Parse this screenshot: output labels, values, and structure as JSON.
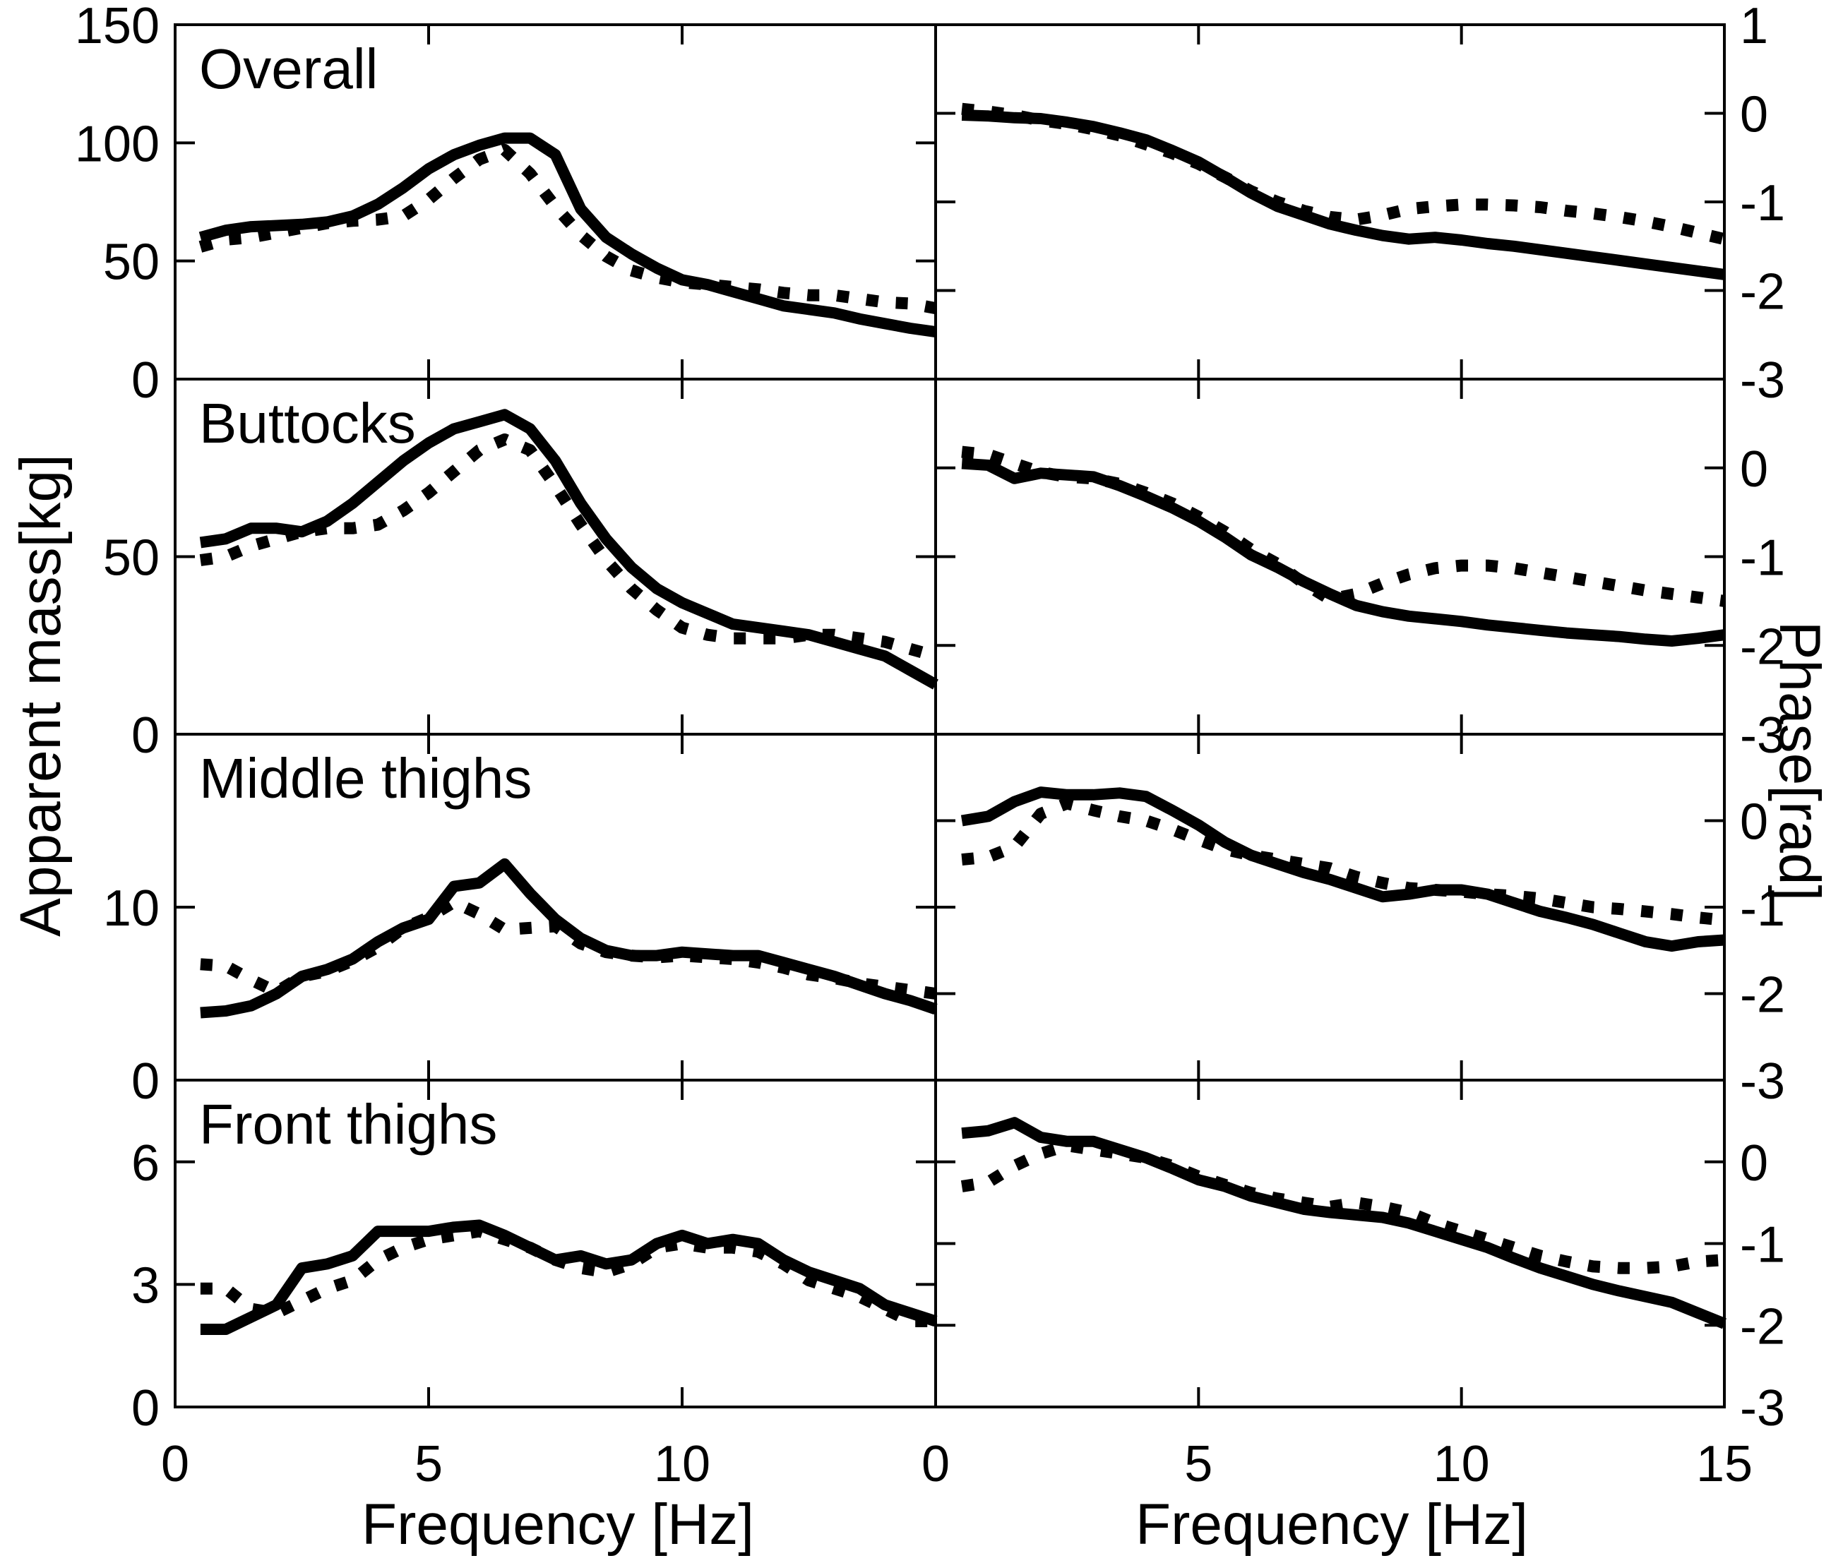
{
  "figure": {
    "background": "#ffffff",
    "ink_color": "#000000",
    "ylabel_left": "Apparent mass[kg]",
    "ylabel_right": "Phase[rad]",
    "xlabel": "Frequency [Hz]",
    "row_titles": [
      "Overall",
      "Buttocks",
      "Middle thighs",
      "Front thighs"
    ],
    "line_styles": [
      {
        "name": "solid",
        "description": "thick solid black line"
      },
      {
        "name": "dotted",
        "description": "thick dotted black line"
      }
    ]
  },
  "chart_data": [
    {
      "id": "overall-mass",
      "type": "line",
      "row": 0,
      "col": "left",
      "title": "Overall",
      "xlabel": "Frequency [Hz]",
      "ylabel": "Apparent mass[kg]",
      "xlim": [
        0,
        15
      ],
      "xticks": [
        0,
        5,
        10,
        15
      ],
      "xtick_labels": [
        "0",
        "5",
        "10",
        ""
      ],
      "ylim": [
        0,
        150
      ],
      "yticks": [
        0,
        50,
        100,
        150
      ],
      "ytick_labels": [
        "0",
        "50",
        "100",
        "150"
      ],
      "x_start": 0.5,
      "x_step": 0.5,
      "grid": false,
      "legend": "none",
      "series": [
        {
          "name": "solid",
          "style": "solid",
          "values": [
            60,
            63,
            64.5,
            65,
            65.5,
            66.5,
            69,
            74,
            81,
            89,
            95,
            99,
            102,
            102,
            95,
            72,
            60,
            53,
            47,
            42,
            40,
            37,
            34,
            31,
            29.5,
            28,
            25.5,
            23.5,
            21.5,
            20
          ]
        },
        {
          "name": "dotted",
          "style": "dotted",
          "values": [
            56,
            59,
            60,
            62,
            64,
            66,
            67,
            67.5,
            69,
            76,
            85,
            93,
            97,
            87,
            73,
            61,
            52,
            46,
            43,
            41,
            40,
            39,
            38,
            36.5,
            35.5,
            35.5,
            34,
            32.5,
            32,
            30
          ]
        }
      ]
    },
    {
      "id": "overall-phase",
      "type": "line",
      "row": 0,
      "col": "right",
      "title": "",
      "xlabel": "Frequency [Hz]",
      "ylabel": "Phase[rad]",
      "xlim": [
        0,
        15
      ],
      "xticks": [
        0,
        5,
        10,
        15
      ],
      "xtick_labels": [
        "0",
        "5",
        "10",
        "15"
      ],
      "ylim": [
        -3,
        1
      ],
      "yticks": [
        -3,
        -2,
        -1,
        0,
        1
      ],
      "ytick_labels": [
        "-3",
        "-2",
        "-1",
        "0",
        "1"
      ],
      "x_start": 0.5,
      "x_step": 0.5,
      "grid": false,
      "legend": "none",
      "series": [
        {
          "name": "solid",
          "style": "solid",
          "values": [
            -0.02,
            -0.03,
            -0.05,
            -0.06,
            -0.1,
            -0.15,
            -0.22,
            -0.3,
            -0.42,
            -0.55,
            -0.72,
            -0.9,
            -1.05,
            -1.15,
            -1.25,
            -1.32,
            -1.38,
            -1.42,
            -1.4,
            -1.43,
            -1.47,
            -1.5,
            -1.54,
            -1.58,
            -1.62,
            -1.66,
            -1.7,
            -1.74,
            -1.78,
            -1.82
          ]
        },
        {
          "name": "dotted",
          "style": "dotted",
          "values": [
            0.05,
            0.02,
            -0.02,
            -0.08,
            -0.12,
            -0.18,
            -0.25,
            -0.35,
            -0.45,
            -0.57,
            -0.72,
            -0.88,
            -1.0,
            -1.1,
            -1.17,
            -1.2,
            -1.15,
            -1.08,
            -1.05,
            -1.03,
            -1.03,
            -1.04,
            -1.06,
            -1.1,
            -1.13,
            -1.17,
            -1.22,
            -1.28,
            -1.35,
            -1.42
          ]
        }
      ]
    },
    {
      "id": "buttocks-mass",
      "type": "line",
      "row": 1,
      "col": "left",
      "title": "Buttocks",
      "xlabel": "Frequency [Hz]",
      "ylabel": "Apparent mass[kg]",
      "xlim": [
        0,
        15
      ],
      "xticks": [
        0,
        5,
        10,
        15
      ],
      "xtick_labels": [
        "0",
        "5",
        "10",
        ""
      ],
      "ylim": [
        0,
        100
      ],
      "yticks": [
        0,
        50,
        100
      ],
      "ytick_labels": [
        "0",
        "50",
        ""
      ],
      "x_start": 0.5,
      "x_step": 0.5,
      "grid": false,
      "legend": "none",
      "series": [
        {
          "name": "solid",
          "style": "solid",
          "values": [
            54,
            55,
            58,
            58,
            57,
            60,
            65,
            71,
            77,
            82,
            86,
            88,
            90,
            86,
            77,
            65,
            55,
            47,
            41,
            37,
            34,
            31,
            30,
            29,
            28,
            26,
            24,
            22,
            18,
            14
          ]
        },
        {
          "name": "dotted",
          "style": "dotted",
          "values": [
            49,
            50,
            53,
            55,
            57,
            58,
            58,
            59,
            63,
            68,
            74,
            80,
            83,
            80,
            70,
            59,
            49,
            41,
            35,
            30,
            28,
            27,
            27,
            27,
            28,
            28,
            27,
            26,
            24,
            22
          ]
        }
      ]
    },
    {
      "id": "buttocks-phase",
      "type": "line",
      "row": 1,
      "col": "right",
      "title": "",
      "xlabel": "Frequency [Hz]",
      "ylabel": "Phase[rad]",
      "xlim": [
        0,
        15
      ],
      "xticks": [
        0,
        5,
        10,
        15
      ],
      "xtick_labels": [
        "0",
        "5",
        "10",
        "15"
      ],
      "ylim": [
        -3,
        1
      ],
      "yticks": [
        -3,
        -2,
        -1,
        0,
        1
      ],
      "ytick_labels": [
        "-3",
        "-2",
        "-1",
        "0",
        ""
      ],
      "x_start": 0.5,
      "x_step": 0.5,
      "grid": false,
      "legend": "none",
      "series": [
        {
          "name": "solid",
          "style": "solid",
          "values": [
            0.05,
            0.03,
            -0.12,
            -0.06,
            -0.08,
            -0.1,
            -0.2,
            -0.32,
            -0.45,
            -0.6,
            -0.78,
            -0.98,
            -1.12,
            -1.28,
            -1.42,
            -1.55,
            -1.62,
            -1.67,
            -1.7,
            -1.73,
            -1.77,
            -1.8,
            -1.83,
            -1.86,
            -1.88,
            -1.9,
            -1.93,
            -1.95,
            -1.92,
            -1.88
          ]
        },
        {
          "name": "dotted",
          "style": "dotted",
          "values": [
            0.18,
            0.15,
            0.05,
            -0.05,
            -0.1,
            -0.12,
            -0.18,
            -0.28,
            -0.4,
            -0.55,
            -0.72,
            -0.92,
            -1.08,
            -1.3,
            -1.48,
            -1.42,
            -1.3,
            -1.2,
            -1.13,
            -1.1,
            -1.1,
            -1.13,
            -1.18,
            -1.23,
            -1.28,
            -1.33,
            -1.38,
            -1.42,
            -1.46,
            -1.5
          ]
        }
      ]
    },
    {
      "id": "middle-thighs-mass",
      "type": "line",
      "row": 2,
      "col": "left",
      "title": "Middle thighs",
      "xlabel": "Frequency [Hz]",
      "ylabel": "Apparent mass[kg]",
      "xlim": [
        0,
        15
      ],
      "xticks": [
        0,
        5,
        10,
        15
      ],
      "xtick_labels": [
        "0",
        "5",
        "10",
        ""
      ],
      "ylim": [
        0,
        20
      ],
      "yticks": [
        0,
        10,
        20
      ],
      "ytick_labels": [
        "0",
        "10",
        ""
      ],
      "x_start": 0.5,
      "x_step": 0.5,
      "grid": false,
      "legend": "none",
      "series": [
        {
          "name": "solid",
          "style": "solid",
          "values": [
            3.9,
            4.0,
            4.3,
            5.0,
            6.0,
            6.4,
            7.0,
            8.0,
            8.8,
            9.3,
            11.2,
            11.4,
            12.5,
            10.8,
            9.3,
            8.2,
            7.5,
            7.2,
            7.2,
            7.4,
            7.3,
            7.2,
            7.2,
            6.8,
            6.4,
            6.0,
            5.5,
            5.0,
            4.6,
            4.1
          ]
        },
        {
          "name": "dotted",
          "style": "dotted",
          "values": [
            6.7,
            6.6,
            5.8,
            5.1,
            6.0,
            6.3,
            6.9,
            7.7,
            8.8,
            9.4,
            10.3,
            9.6,
            8.7,
            8.8,
            8.9,
            7.9,
            7.4,
            7.2,
            7.1,
            7.2,
            7.1,
            7.0,
            6.8,
            6.5,
            6.1,
            5.9,
            5.6,
            5.4,
            5.2,
            5.0
          ]
        }
      ]
    },
    {
      "id": "middle-thighs-phase",
      "type": "line",
      "row": 2,
      "col": "right",
      "title": "",
      "xlabel": "Frequency [Hz]",
      "ylabel": "Phase[rad]",
      "xlim": [
        0,
        15
      ],
      "xticks": [
        0,
        5,
        10,
        15
      ],
      "xtick_labels": [
        "0",
        "5",
        "10",
        "15"
      ],
      "ylim": [
        -3,
        1
      ],
      "yticks": [
        -3,
        -2,
        -1,
        0,
        1
      ],
      "ytick_labels": [
        "-3",
        "-2",
        "-1",
        "0",
        ""
      ],
      "x_start": 0.5,
      "x_step": 0.5,
      "grid": false,
      "legend": "none",
      "series": [
        {
          "name": "solid",
          "style": "solid",
          "values": [
            0.0,
            0.05,
            0.22,
            0.33,
            0.3,
            0.3,
            0.32,
            0.28,
            0.12,
            -0.05,
            -0.25,
            -0.4,
            -0.5,
            -0.6,
            -0.68,
            -0.78,
            -0.88,
            -0.85,
            -0.8,
            -0.8,
            -0.85,
            -0.95,
            -1.05,
            -1.12,
            -1.2,
            -1.3,
            -1.4,
            -1.45,
            -1.4,
            -1.38
          ]
        },
        {
          "name": "dotted",
          "style": "dotted",
          "values": [
            -0.45,
            -0.42,
            -0.3,
            0.08,
            0.2,
            0.12,
            0.05,
            0.0,
            -0.1,
            -0.22,
            -0.33,
            -0.4,
            -0.45,
            -0.5,
            -0.55,
            -0.65,
            -0.72,
            -0.78,
            -0.8,
            -0.82,
            -0.85,
            -0.87,
            -0.9,
            -0.95,
            -1.0,
            -1.02,
            -1.05,
            -1.08,
            -1.12,
            -1.15
          ]
        }
      ]
    },
    {
      "id": "front-thighs-mass",
      "type": "line",
      "row": 3,
      "col": "left",
      "title": "Front thighs",
      "xlabel": "Frequency [Hz]",
      "ylabel": "Apparent mass[kg]",
      "xlim": [
        0,
        15
      ],
      "xticks": [
        0,
        5,
        10,
        15
      ],
      "xtick_labels": [
        "0",
        "5",
        "10",
        ""
      ],
      "ylim": [
        0,
        8
      ],
      "yticks": [
        0,
        3,
        6
      ],
      "ytick_labels": [
        "0",
        "3",
        "6"
      ],
      "x_start": 0.5,
      "x_step": 0.5,
      "grid": false,
      "legend": "none",
      "series": [
        {
          "name": "solid",
          "style": "solid",
          "values": [
            1.9,
            1.9,
            2.2,
            2.5,
            3.4,
            3.5,
            3.7,
            4.3,
            4.3,
            4.3,
            4.4,
            4.45,
            4.2,
            3.9,
            3.6,
            3.7,
            3.5,
            3.6,
            4.0,
            4.2,
            4.0,
            4.1,
            4.0,
            3.6,
            3.3,
            3.1,
            2.9,
            2.5,
            2.3,
            2.1
          ]
        },
        {
          "name": "dotted",
          "style": "dotted",
          "values": [
            2.9,
            2.9,
            2.4,
            2.3,
            2.6,
            2.9,
            3.1,
            3.6,
            3.9,
            4.1,
            4.2,
            4.3,
            4.1,
            3.9,
            3.6,
            3.4,
            3.3,
            3.5,
            3.9,
            4.0,
            3.9,
            3.9,
            3.8,
            3.5,
            3.1,
            2.9,
            2.7,
            2.4,
            2.1,
            2.1
          ]
        }
      ]
    },
    {
      "id": "front-thighs-phase",
      "type": "line",
      "row": 3,
      "col": "right",
      "title": "",
      "xlabel": "Frequency [Hz]",
      "ylabel": "Phase[rad]",
      "xlim": [
        0,
        15
      ],
      "xticks": [
        0,
        5,
        10,
        15
      ],
      "xtick_labels": [
        "0",
        "5",
        "10",
        "15"
      ],
      "ylim": [
        -3,
        1
      ],
      "yticks": [
        -3,
        -2,
        -1,
        0,
        1
      ],
      "ytick_labels": [
        "-3",
        "-2",
        "-1",
        "0",
        ""
      ],
      "x_start": 0.5,
      "x_step": 0.5,
      "grid": false,
      "legend": "none",
      "series": [
        {
          "name": "solid",
          "style": "solid",
          "values": [
            0.35,
            0.38,
            0.48,
            0.3,
            0.25,
            0.25,
            0.15,
            0.05,
            -0.08,
            -0.22,
            -0.3,
            -0.42,
            -0.5,
            -0.58,
            -0.62,
            -0.65,
            -0.68,
            -0.75,
            -0.85,
            -0.95,
            -1.05,
            -1.18,
            -1.3,
            -1.4,
            -1.5,
            -1.58,
            -1.65,
            -1.72,
            -1.85,
            -1.98
          ]
        },
        {
          "name": "dotted",
          "style": "dotted",
          "values": [
            -0.3,
            -0.25,
            -0.05,
            0.1,
            0.2,
            0.15,
            0.1,
            0.05,
            -0.05,
            -0.18,
            -0.28,
            -0.38,
            -0.45,
            -0.5,
            -0.55,
            -0.5,
            -0.55,
            -0.62,
            -0.75,
            -0.85,
            -0.95,
            -1.05,
            -1.15,
            -1.22,
            -1.28,
            -1.3,
            -1.3,
            -1.28,
            -1.22,
            -1.2
          ]
        }
      ]
    }
  ]
}
